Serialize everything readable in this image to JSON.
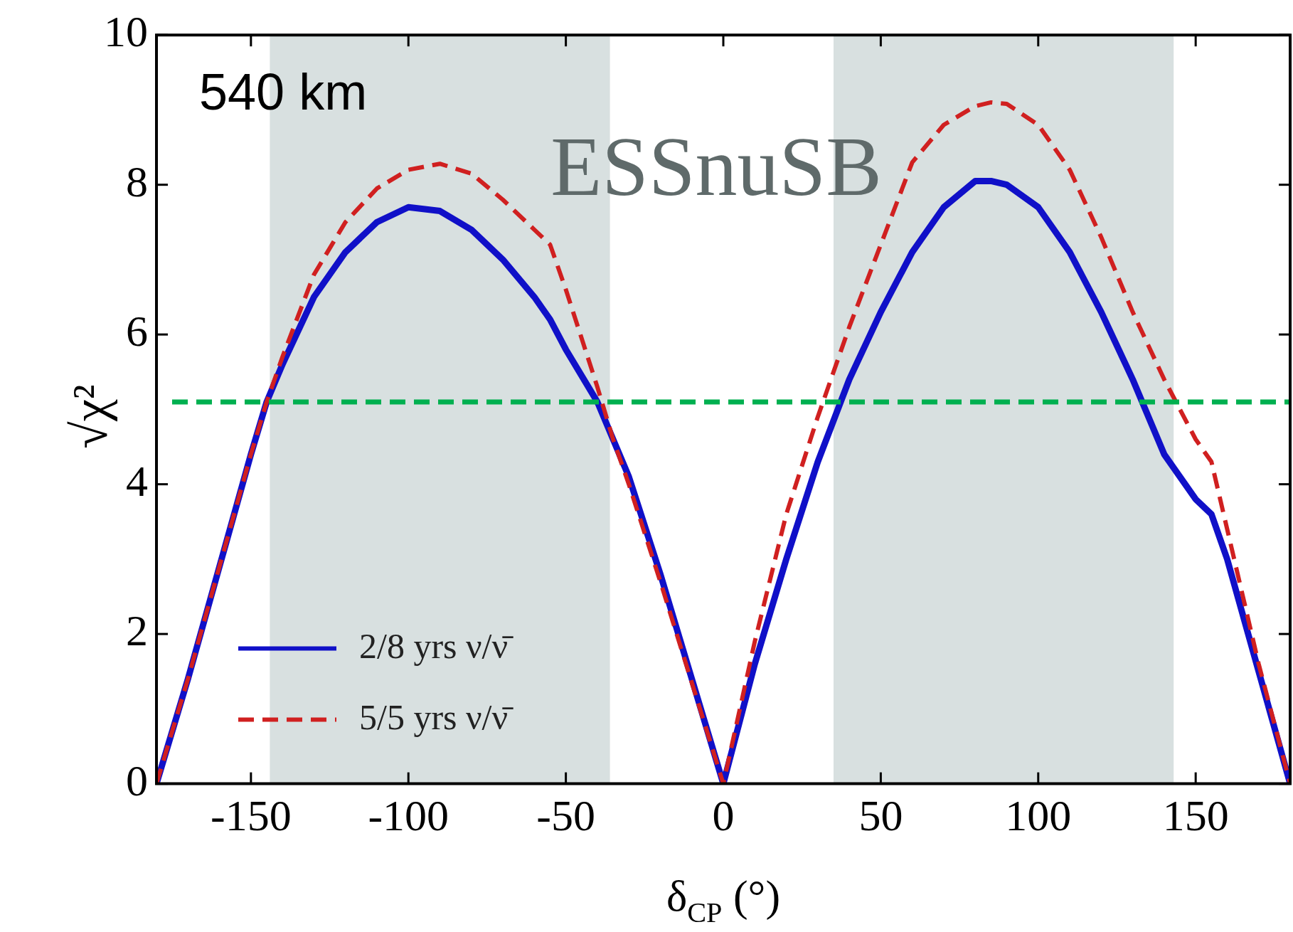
{
  "chart_data": {
    "type": "line",
    "xlabel": "δ$_{CP}$ (°)",
    "ylabel": "√χ²",
    "annotations": [
      "540 km",
      "ESSnuSB"
    ],
    "x": [
      -180,
      -170,
      -160,
      -150,
      -145,
      -140,
      -130,
      -120,
      -110,
      -100,
      -90,
      -80,
      -70,
      -60,
      -55,
      -50,
      -40,
      -35,
      -30,
      -20,
      -10,
      0,
      10,
      20,
      30,
      40,
      50,
      60,
      70,
      80,
      85,
      90,
      100,
      110,
      120,
      130,
      140,
      150,
      155,
      160,
      170,
      180
    ],
    "series": [
      {
        "name": "2/8 yrs ν/ν̄",
        "color": "#1010c8",
        "line_style": "solid",
        "values": [
          0,
          1.4,
          2.9,
          4.4,
          5.1,
          5.6,
          6.5,
          7.1,
          7.5,
          7.7,
          7.65,
          7.4,
          7.0,
          6.5,
          6.2,
          5.8,
          5.1,
          4.6,
          4.1,
          2.8,
          1.4,
          0,
          1.6,
          3.0,
          4.3,
          5.4,
          6.3,
          7.1,
          7.7,
          8.05,
          8.05,
          8.0,
          7.7,
          7.1,
          6.3,
          5.4,
          4.4,
          3.8,
          3.6,
          3.0,
          1.5,
          0
        ]
      },
      {
        "name": "5/5 yrs ν/ν̄",
        "color": "#d02020",
        "line_style": "dashed",
        "values": [
          0,
          1.4,
          2.9,
          4.4,
          5.1,
          5.7,
          6.8,
          7.5,
          7.95,
          8.2,
          8.28,
          8.15,
          7.8,
          7.4,
          7.2,
          6.6,
          5.3,
          4.6,
          4.0,
          2.7,
          1.35,
          0,
          1.9,
          3.6,
          4.9,
          6.1,
          7.2,
          8.3,
          8.8,
          9.05,
          9.1,
          9.08,
          8.8,
          8.2,
          7.3,
          6.3,
          5.4,
          4.6,
          4.3,
          3.4,
          1.6,
          0
        ]
      }
    ],
    "xlim": [
      -180,
      180
    ],
    "xticks": [
      -150,
      -100,
      -50,
      0,
      50,
      100,
      150
    ],
    "ylim": [
      0,
      10
    ],
    "yticks": [
      0,
      2,
      4,
      6,
      8,
      10
    ],
    "ref_lines": [
      {
        "axis": "y",
        "value": 5.1,
        "color": "#00b050",
        "line_style": "dashed"
      }
    ],
    "bands": [
      {
        "axis": "x",
        "from": -144,
        "to": -36,
        "color": "#d8e0e0"
      },
      {
        "axis": "x",
        "from": 35,
        "to": 143,
        "color": "#d8e0e0"
      }
    ],
    "legend": "bottom left",
    "grid": false
  }
}
